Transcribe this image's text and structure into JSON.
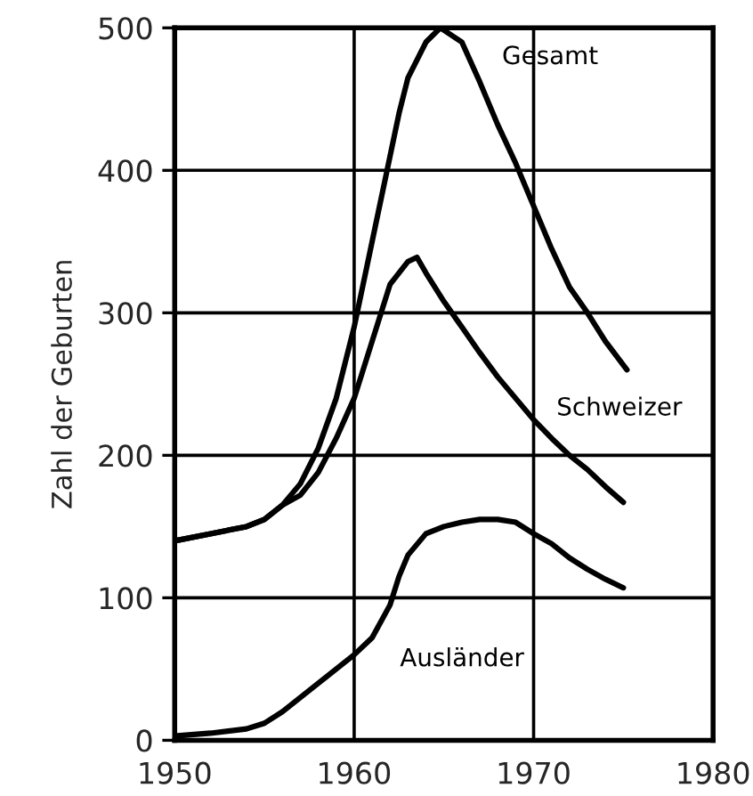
{
  "chart_data": {
    "type": "line",
    "ylabel": "Zahl der Geburten",
    "series": [
      {
        "name": "Gesamt",
        "color": "#000000",
        "x": [
          1950,
          1952,
          1954,
          1955,
          1956,
          1957,
          1958,
          1959,
          1960,
          1961,
          1962,
          1962.5,
          1963,
          1964,
          1964.8,
          1966,
          1967,
          1968,
          1969,
          1970,
          1971,
          1972,
          1973,
          1974,
          1975.2
        ],
        "values": [
          140,
          145,
          150,
          155,
          165,
          180,
          205,
          240,
          290,
          350,
          410,
          440,
          465,
          490,
          500,
          490,
          462,
          432,
          405,
          375,
          345,
          318,
          300,
          280,
          260
        ]
      },
      {
        "name": "Schweizer",
        "color": "#000000",
        "x": [
          1950,
          1952,
          1954,
          1955,
          1956,
          1957,
          1958,
          1959,
          1960,
          1961,
          1962,
          1963,
          1963.5,
          1964,
          1965,
          1966,
          1967,
          1968,
          1969,
          1970,
          1971,
          1972,
          1973,
          1974,
          1975
        ],
        "values": [
          140,
          145,
          150,
          155,
          165,
          172,
          188,
          212,
          240,
          280,
          320,
          336,
          339,
          328,
          308,
          290,
          272,
          255,
          240,
          225,
          212,
          200,
          190,
          178,
          167
        ]
      },
      {
        "name": "Ausländer",
        "color": "#000000",
        "x": [
          1950,
          1952,
          1954,
          1955,
          1956,
          1957,
          1958,
          1959,
          1960,
          1961,
          1962,
          1962.5,
          1963,
          1964,
          1965,
          1966,
          1967,
          1968,
          1969,
          1970,
          1971,
          1972,
          1973,
          1974,
          1975
        ],
        "values": [
          3,
          5,
          8,
          12,
          20,
          30,
          40,
          50,
          60,
          72,
          95,
          115,
          130,
          145,
          150,
          153,
          155,
          155,
          153,
          145,
          138,
          128,
          120,
          113,
          107
        ]
      }
    ],
    "xlim": [
      1950,
      1980
    ],
    "xticks": [
      1950,
      1960,
      1970,
      1980
    ],
    "ylim": [
      0,
      500
    ],
    "yticks": [
      0,
      100,
      200,
      300,
      400,
      500
    ],
    "grid": true,
    "legend": false,
    "marker": "none",
    "line_style": "solid"
  }
}
